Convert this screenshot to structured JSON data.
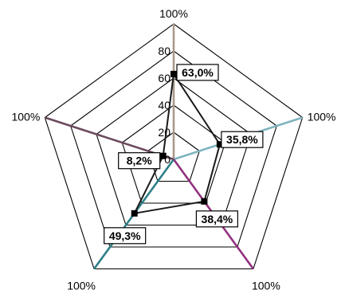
{
  "chart_data": {
    "type": "radar",
    "axes": [
      {
        "corner_label": "100%",
        "value": 63.0,
        "value_label": "63,0%",
        "color": "#a89a8c"
      },
      {
        "corner_label": "100%",
        "value": 35.8,
        "value_label": "35,8%",
        "color": "#7fb4bf"
      },
      {
        "corner_label": "100%",
        "value": 38.4,
        "value_label": "38,4%",
        "color": "#92307e"
      },
      {
        "corner_label": "100%",
        "value": 49.3,
        "value_label": "49,3%",
        "color": "#2d8088"
      },
      {
        "corner_label": "100%",
        "value": 8.2,
        "value_label": "8,2%",
        "color": "#6b4a5e"
      }
    ],
    "radial_ticks": [
      "0",
      "20",
      "40",
      "60",
      "80"
    ],
    "rlim": [
      0,
      100
    ],
    "series_color": "#1a1a1a",
    "grid": true
  }
}
